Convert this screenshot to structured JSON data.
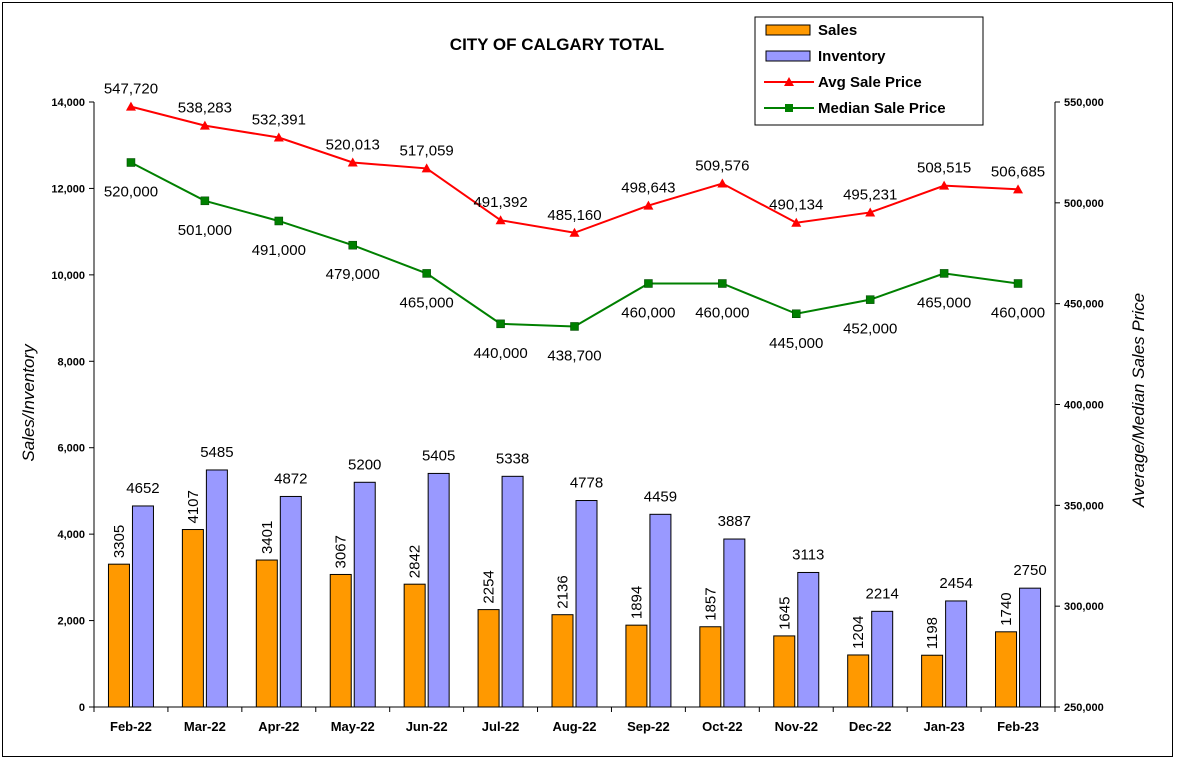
{
  "chart_data": {
    "type": "bar",
    "title": "CITY OF CALGARY TOTAL",
    "categories": [
      "Feb-22",
      "Mar-22",
      "Apr-22",
      "May-22",
      "Jun-22",
      "Jul-22",
      "Aug-22",
      "Sep-22",
      "Oct-22",
      "Nov-22",
      "Dec-22",
      "Jan-23",
      "Feb-23"
    ],
    "ylabel": "Sales/Inventory",
    "y2label": "Average/Median Sales Price",
    "ylim": [
      0,
      14000
    ],
    "y2lim": [
      250000,
      550000
    ],
    "yticks": [
      "0",
      "2,000",
      "4,000",
      "6,000",
      "8,000",
      "10,000",
      "12,000",
      "14,000"
    ],
    "y2ticks": [
      "250,000",
      "300,000",
      "350,000",
      "400,000",
      "450,000",
      "500,000",
      "550,000"
    ],
    "series": [
      {
        "name": "Sales",
        "type": "bar",
        "axis": "left",
        "color": "#FF9900",
        "values": [
          3305,
          4107,
          3401,
          3067,
          2842,
          2254,
          2136,
          1894,
          1857,
          1645,
          1204,
          1198,
          1740
        ],
        "labels": [
          "3305",
          "4107",
          "3401",
          "3067",
          "2842",
          "2254",
          "2136",
          "1894",
          "1857",
          "1645",
          "1204",
          "1198",
          "1740"
        ]
      },
      {
        "name": "Inventory",
        "type": "bar",
        "axis": "left",
        "color": "#9999FF",
        "values": [
          4652,
          5485,
          4872,
          5200,
          5405,
          5338,
          4778,
          4459,
          3887,
          3113,
          2214,
          2454,
          2750
        ],
        "labels": [
          "4652",
          "5485",
          "4872",
          "5200",
          "5405",
          "5338",
          "4778",
          "4459",
          "3887",
          "3113",
          "2214",
          "2454",
          "2750"
        ]
      },
      {
        "name": "Avg Sale Price",
        "type": "line",
        "axis": "right",
        "color": "#FF0000",
        "marker": "triangle",
        "values": [
          547720,
          538283,
          532391,
          520013,
          517059,
          491392,
          485160,
          498643,
          509576,
          490134,
          495231,
          508515,
          506685
        ],
        "labels": [
          "547,720",
          "538,283",
          "532,391",
          "520,013",
          "517,059",
          "491,392",
          "485,160",
          "498,643",
          "509,576",
          "490,134",
          "495,231",
          "508,515",
          "506,685"
        ]
      },
      {
        "name": "Median Sale Price",
        "type": "line",
        "axis": "right",
        "color": "#008000",
        "marker": "square",
        "values": [
          520000,
          501000,
          491000,
          479000,
          465000,
          440000,
          438700,
          460000,
          460000,
          445000,
          452000,
          465000,
          460000
        ],
        "labels": [
          "520,000",
          "501,000",
          "491,000",
          "479,000",
          "465,000",
          "440,000",
          "438,700",
          "460,000",
          "460,000",
          "445,000",
          "452,000",
          "465,000",
          "460,000"
        ]
      }
    ],
    "legend": "top-right",
    "grid": false
  }
}
